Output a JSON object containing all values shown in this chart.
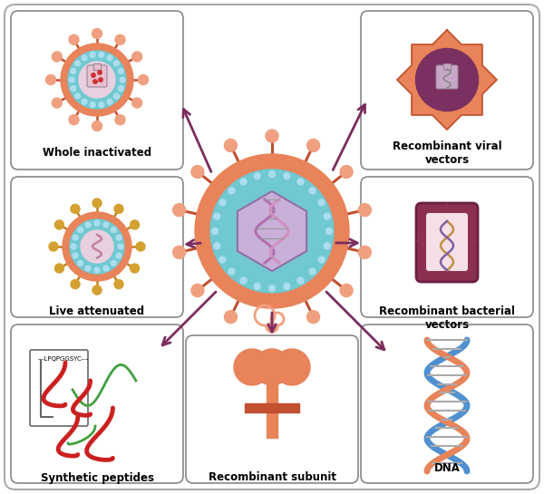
{
  "bg_color": "#ffffff",
  "arrow_color": "#7b2d5e",
  "salmon": "#e8835a",
  "salmon_light": "#f0a080",
  "salmon_dark": "#c05030",
  "teal": "#70c8d0",
  "lavender": "#c8b0d0",
  "gold": "#d4a030",
  "blue_dna": "#5090d0",
  "panel_border": "#888888",
  "dark_red_panel": "#8b3050",
  "labels": {
    "whole_inactivated": "Whole inactivated",
    "live_attenuated": "Live attenuated",
    "synthetic_peptides": "Synthetic peptides",
    "recombinant_subunit": "Recombinant subunit",
    "recombinant_viral": "Recombinant viral\nvectors",
    "recombinant_bacterial": "Recombinant bacterial\nvectors",
    "dna": "DNA"
  },
  "peptide_seq": "---LPQPGGSYC---"
}
